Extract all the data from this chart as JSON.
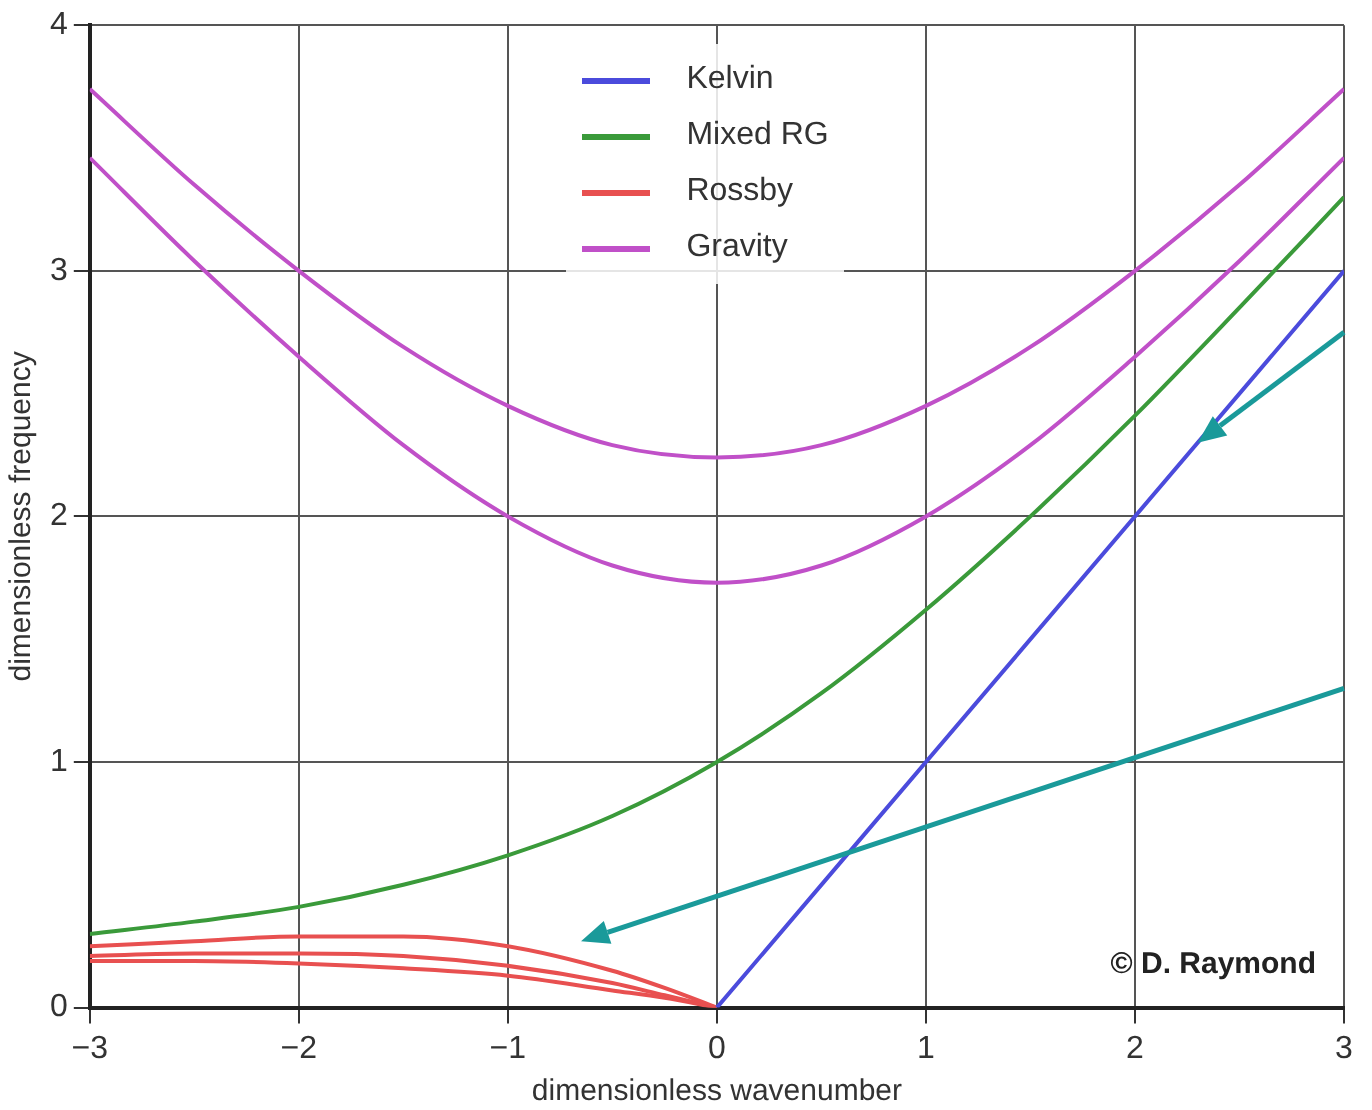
{
  "chart_data": {
    "type": "line",
    "xlabel": "dimensionless wavenumber",
    "ylabel": "dimensionless frequency",
    "xlim": [
      -3,
      3
    ],
    "ylim": [
      0,
      4
    ],
    "xticks": [
      {
        "value": -3,
        "label": "−3"
      },
      {
        "value": -2,
        "label": "−2"
      },
      {
        "value": -1,
        "label": "−1"
      },
      0,
      1,
      2,
      3
    ],
    "yticks": [
      0,
      1,
      2,
      3,
      4
    ],
    "grid": true,
    "legend": "top",
    "marker": "none",
    "line_style": "solid",
    "annotations": [
      "© D. Raymond"
    ],
    "series": [
      {
        "name": "Kelvin",
        "color": "#4b4bdc",
        "x": [
          0,
          3
        ],
        "values": [
          0,
          3
        ]
      },
      {
        "name": "Mixed RG",
        "color": "#3a9a3a",
        "x": [
          -3,
          -2.5,
          -2,
          -1.5,
          -1,
          -0.5,
          0,
          0.5,
          1,
          1.5,
          2,
          2.5,
          3
        ],
        "values": [
          0.3,
          0.35,
          0.41,
          0.5,
          0.62,
          0.78,
          1,
          1.28,
          1.62,
          2,
          2.41,
          2.85,
          3.3
        ]
      },
      {
        "name": "Rossby",
        "color": "#e85050",
        "x": [
          -3,
          -2.5,
          -2,
          -1.5,
          -1,
          -0.5,
          -0.25,
          0
        ],
        "values": [
          0.25,
          0.27,
          0.29,
          0.29,
          0.25,
          0.15,
          0.08,
          0
        ]
      },
      {
        "color": "#e85050",
        "x": [
          -3,
          -2.5,
          -2,
          -1.5,
          -1,
          -0.5,
          -0.25,
          0
        ],
        "values": [
          0.21,
          0.22,
          0.22,
          0.21,
          0.17,
          0.1,
          0.05,
          0
        ]
      },
      {
        "color": "#e85050",
        "x": [
          -3,
          -2.5,
          -2,
          -1.5,
          -1,
          -0.5,
          -0.25,
          0
        ],
        "values": [
          0.19,
          0.19,
          0.18,
          0.16,
          0.13,
          0.07,
          0.04,
          0
        ]
      },
      {
        "name": "Gravity",
        "color": "#c050c8",
        "x": [
          -3,
          -2.5,
          -2,
          -1.5,
          -1,
          -0.5,
          0,
          0.5,
          1,
          1.5,
          2,
          2.5,
          3
        ],
        "values": [
          3.46,
          3.04,
          2.65,
          2.29,
          2,
          1.8,
          1.73,
          1.8,
          2,
          2.29,
          2.65,
          3.04,
          3.46
        ]
      },
      {
        "color": "#c050c8",
        "x": [
          -3,
          -2.5,
          -2,
          -1.5,
          -1,
          -0.5,
          0,
          0.5,
          1,
          1.5,
          2,
          2.5,
          3
        ],
        "values": [
          3.74,
          3.35,
          3,
          2.69,
          2.45,
          2.29,
          2.24,
          2.29,
          2.45,
          2.69,
          3,
          3.35,
          3.74
        ]
      }
    ]
  }
}
